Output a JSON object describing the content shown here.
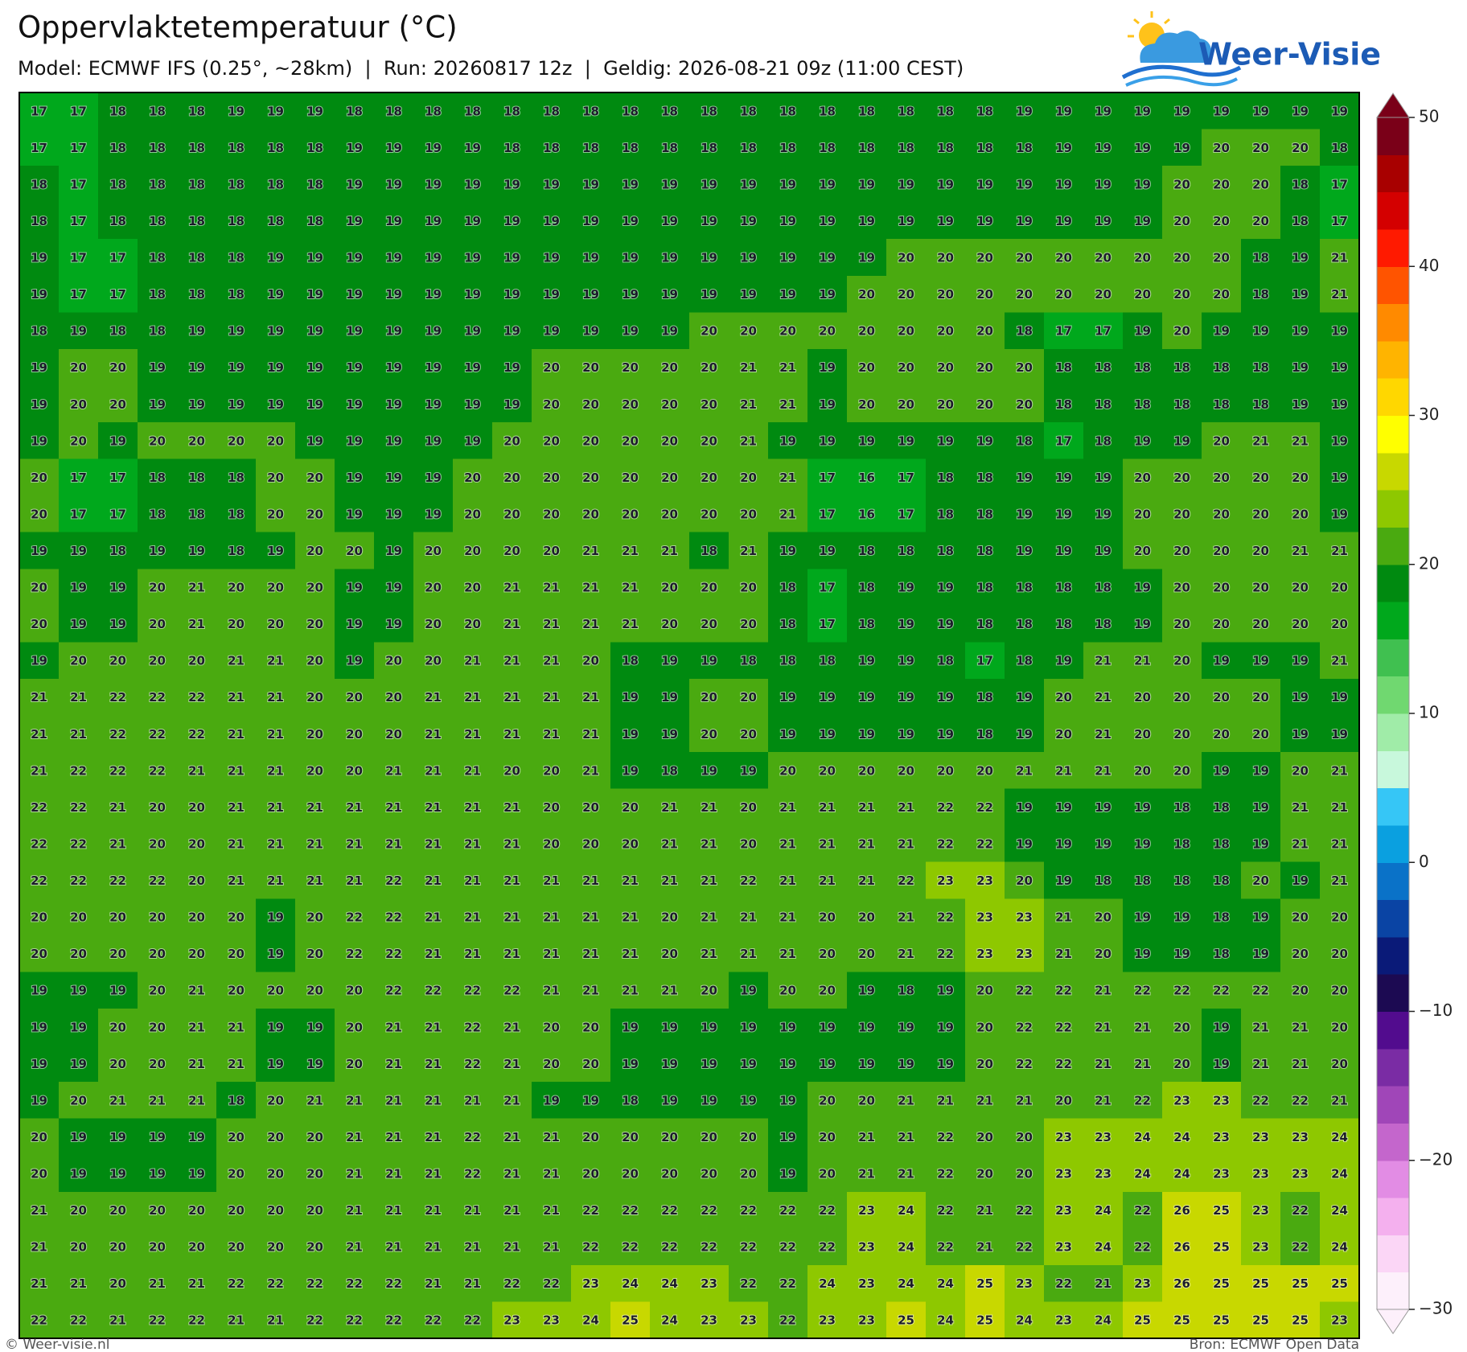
{
  "header": {
    "title": "Oppervlaktetemperatuur (°C)",
    "subtitle": "Model: ECMWF IFS (0.25°, ~28km)  |  Run: 20260817 12z  |  Geldig: 2026-08-21 09z (11:00 CEST)"
  },
  "logo": {
    "text": "Weer-Visie"
  },
  "grid": {
    "values": [
      [
        17,
        17,
        18,
        18,
        18,
        19,
        19,
        19,
        18,
        18,
        18,
        18,
        18,
        18,
        18,
        18,
        18,
        18,
        18,
        18,
        18,
        18,
        18,
        18,
        18,
        19,
        19,
        19,
        19,
        19,
        19,
        19,
        19,
        19
      ],
      [
        17,
        17,
        18,
        18,
        18,
        18,
        18,
        18,
        19,
        19,
        19,
        19,
        18,
        18,
        18,
        18,
        18,
        18,
        18,
        18,
        18,
        18,
        18,
        18,
        18,
        18,
        19,
        19,
        19,
        19,
        20,
        20,
        20,
        18
      ],
      [
        18,
        17,
        18,
        18,
        18,
        18,
        18,
        18,
        19,
        19,
        19,
        19,
        19,
        19,
        19,
        19,
        19,
        19,
        19,
        19,
        19,
        19,
        19,
        19,
        19,
        19,
        19,
        19,
        19,
        20,
        20,
        20,
        18,
        17
      ],
      [
        18,
        17,
        18,
        18,
        18,
        18,
        18,
        18,
        19,
        19,
        19,
        19,
        19,
        19,
        19,
        19,
        19,
        19,
        19,
        19,
        19,
        19,
        19,
        19,
        19,
        19,
        19,
        19,
        19,
        20,
        20,
        20,
        18,
        17
      ],
      [
        19,
        17,
        17,
        18,
        18,
        18,
        19,
        19,
        19,
        19,
        19,
        19,
        19,
        19,
        19,
        19,
        19,
        19,
        19,
        19,
        19,
        19,
        20,
        20,
        20,
        20,
        20,
        20,
        20,
        20,
        20,
        18,
        19,
        21
      ],
      [
        19,
        17,
        17,
        18,
        18,
        18,
        19,
        19,
        19,
        19,
        19,
        19,
        19,
        19,
        19,
        19,
        19,
        19,
        19,
        19,
        19,
        20,
        20,
        20,
        20,
        20,
        20,
        20,
        20,
        20,
        20,
        18,
        19,
        21
      ],
      [
        18,
        19,
        18,
        18,
        19,
        19,
        19,
        19,
        19,
        19,
        19,
        19,
        19,
        19,
        19,
        19,
        19,
        20,
        20,
        20,
        20,
        20,
        20,
        20,
        20,
        18,
        17,
        17,
        19,
        20,
        19,
        19,
        19,
        19
      ],
      [
        19,
        20,
        20,
        19,
        19,
        19,
        19,
        19,
        19,
        19,
        19,
        19,
        19,
        20,
        20,
        20,
        20,
        20,
        21,
        21,
        19,
        20,
        20,
        20,
        20,
        20,
        18,
        18,
        18,
        18,
        18,
        18,
        19,
        19
      ],
      [
        19,
        20,
        20,
        19,
        19,
        19,
        19,
        19,
        19,
        19,
        19,
        19,
        19,
        20,
        20,
        20,
        20,
        20,
        21,
        21,
        19,
        20,
        20,
        20,
        20,
        20,
        18,
        18,
        18,
        18,
        18,
        18,
        19,
        19
      ],
      [
        19,
        20,
        19,
        20,
        20,
        20,
        20,
        19,
        19,
        19,
        19,
        19,
        20,
        20,
        20,
        20,
        20,
        20,
        21,
        19,
        19,
        19,
        19,
        19,
        19,
        18,
        17,
        18,
        19,
        19,
        20,
        21,
        21,
        19
      ],
      [
        20,
        17,
        17,
        18,
        18,
        18,
        20,
        20,
        19,
        19,
        19,
        20,
        20,
        20,
        20,
        20,
        20,
        20,
        20,
        21,
        17,
        16,
        17,
        18,
        18,
        19,
        19,
        19,
        20,
        20,
        20,
        20,
        20,
        19
      ],
      [
        20,
        17,
        17,
        18,
        18,
        18,
        20,
        20,
        19,
        19,
        19,
        20,
        20,
        20,
        20,
        20,
        20,
        20,
        20,
        21,
        17,
        16,
        17,
        18,
        18,
        19,
        19,
        19,
        20,
        20,
        20,
        20,
        20,
        19
      ],
      [
        19,
        19,
        18,
        19,
        19,
        18,
        19,
        20,
        20,
        19,
        20,
        20,
        20,
        20,
        21,
        21,
        21,
        18,
        21,
        19,
        19,
        18,
        18,
        18,
        18,
        19,
        19,
        19,
        20,
        20,
        20,
        20,
        21,
        21
      ],
      [
        20,
        19,
        19,
        20,
        21,
        20,
        20,
        20,
        19,
        19,
        20,
        20,
        21,
        21,
        21,
        21,
        20,
        20,
        20,
        18,
        17,
        18,
        19,
        19,
        18,
        18,
        18,
        18,
        19,
        20,
        20,
        20,
        20,
        20
      ],
      [
        20,
        19,
        19,
        20,
        21,
        20,
        20,
        20,
        19,
        19,
        20,
        20,
        21,
        21,
        21,
        21,
        20,
        20,
        20,
        18,
        17,
        18,
        19,
        19,
        18,
        18,
        18,
        18,
        19,
        20,
        20,
        20,
        20,
        20
      ],
      [
        19,
        20,
        20,
        20,
        20,
        21,
        21,
        20,
        19,
        20,
        20,
        21,
        21,
        21,
        20,
        18,
        19,
        19,
        18,
        18,
        18,
        19,
        19,
        18,
        17,
        18,
        19,
        21,
        21,
        20,
        19,
        19,
        19,
        21
      ],
      [
        21,
        21,
        22,
        22,
        22,
        21,
        21,
        20,
        20,
        20,
        21,
        21,
        21,
        21,
        21,
        19,
        19,
        20,
        20,
        19,
        19,
        19,
        19,
        19,
        18,
        19,
        20,
        21,
        20,
        20,
        20,
        20,
        19,
        19
      ],
      [
        21,
        21,
        22,
        22,
        22,
        21,
        21,
        20,
        20,
        20,
        21,
        21,
        21,
        21,
        21,
        19,
        19,
        20,
        20,
        19,
        19,
        19,
        19,
        19,
        18,
        19,
        20,
        21,
        20,
        20,
        20,
        20,
        19,
        19
      ],
      [
        21,
        22,
        22,
        22,
        21,
        21,
        21,
        20,
        20,
        21,
        21,
        21,
        20,
        20,
        21,
        19,
        18,
        19,
        19,
        20,
        20,
        20,
        20,
        20,
        20,
        21,
        21,
        21,
        20,
        20,
        19,
        19,
        20,
        21
      ],
      [
        22,
        22,
        21,
        20,
        20,
        21,
        21,
        21,
        21,
        21,
        21,
        21,
        21,
        20,
        20,
        20,
        21,
        21,
        20,
        21,
        21,
        21,
        21,
        22,
        22,
        19,
        19,
        19,
        19,
        18,
        18,
        19,
        21,
        21
      ],
      [
        22,
        22,
        21,
        20,
        20,
        21,
        21,
        21,
        21,
        21,
        21,
        21,
        21,
        20,
        20,
        20,
        21,
        21,
        20,
        21,
        21,
        21,
        21,
        22,
        22,
        19,
        19,
        19,
        19,
        18,
        18,
        19,
        21,
        21
      ],
      [
        22,
        22,
        22,
        22,
        20,
        21,
        21,
        21,
        21,
        22,
        21,
        21,
        21,
        21,
        21,
        21,
        21,
        21,
        22,
        21,
        21,
        21,
        22,
        23,
        23,
        20,
        19,
        18,
        18,
        18,
        18,
        20,
        19,
        21
      ],
      [
        20,
        20,
        20,
        20,
        20,
        20,
        19,
        20,
        22,
        22,
        21,
        21,
        21,
        21,
        21,
        21,
        20,
        21,
        21,
        21,
        20,
        20,
        21,
        22,
        23,
        23,
        21,
        20,
        19,
        19,
        18,
        19,
        20,
        20
      ],
      [
        20,
        20,
        20,
        20,
        20,
        20,
        19,
        20,
        22,
        22,
        21,
        21,
        21,
        21,
        21,
        21,
        20,
        21,
        21,
        21,
        20,
        20,
        21,
        22,
        23,
        23,
        21,
        20,
        19,
        19,
        18,
        19,
        20,
        20
      ],
      [
        19,
        19,
        19,
        20,
        21,
        20,
        20,
        20,
        20,
        22,
        22,
        22,
        22,
        21,
        21,
        21,
        21,
        20,
        19,
        20,
        20,
        19,
        18,
        19,
        20,
        22,
        22,
        21,
        22,
        22,
        22,
        22,
        20,
        20
      ],
      [
        19,
        19,
        20,
        20,
        21,
        21,
        19,
        19,
        20,
        21,
        21,
        22,
        21,
        20,
        20,
        19,
        19,
        19,
        19,
        19,
        19,
        19,
        19,
        19,
        20,
        22,
        22,
        21,
        21,
        20,
        19,
        21,
        21,
        20
      ],
      [
        19,
        19,
        20,
        20,
        21,
        21,
        19,
        19,
        20,
        21,
        21,
        22,
        21,
        20,
        20,
        19,
        19,
        19,
        19,
        19,
        19,
        19,
        19,
        19,
        20,
        22,
        22,
        21,
        21,
        20,
        19,
        21,
        21,
        20
      ],
      [
        19,
        20,
        21,
        21,
        21,
        18,
        20,
        21,
        21,
        21,
        21,
        21,
        21,
        19,
        19,
        18,
        19,
        19,
        19,
        19,
        20,
        20,
        21,
        21,
        21,
        21,
        20,
        21,
        22,
        23,
        23,
        22,
        22,
        21
      ],
      [
        20,
        19,
        19,
        19,
        19,
        20,
        20,
        20,
        21,
        21,
        21,
        22,
        21,
        21,
        20,
        20,
        20,
        20,
        20,
        19,
        20,
        21,
        21,
        22,
        20,
        20,
        23,
        23,
        24,
        24,
        23,
        23,
        23,
        24
      ],
      [
        20,
        19,
        19,
        19,
        19,
        20,
        20,
        20,
        21,
        21,
        21,
        22,
        21,
        21,
        20,
        20,
        20,
        20,
        20,
        19,
        20,
        21,
        21,
        22,
        20,
        20,
        23,
        23,
        24,
        24,
        23,
        23,
        23,
        24
      ],
      [
        21,
        20,
        20,
        20,
        20,
        20,
        20,
        20,
        21,
        21,
        21,
        21,
        21,
        21,
        22,
        22,
        22,
        22,
        22,
        22,
        22,
        23,
        24,
        22,
        21,
        22,
        23,
        24,
        22,
        26,
        25,
        23,
        22,
        24
      ],
      [
        21,
        20,
        20,
        20,
        20,
        20,
        20,
        20,
        21,
        21,
        21,
        21,
        21,
        21,
        22,
        22,
        22,
        22,
        22,
        22,
        22,
        23,
        24,
        22,
        21,
        22,
        23,
        24,
        22,
        26,
        25,
        23,
        22,
        24
      ],
      [
        21,
        21,
        20,
        21,
        21,
        22,
        22,
        22,
        22,
        22,
        21,
        21,
        22,
        22,
        23,
        24,
        24,
        23,
        22,
        22,
        24,
        23,
        24,
        24,
        25,
        23,
        22,
        21,
        23,
        26,
        25,
        25,
        25,
        25
      ],
      [
        22,
        22,
        21,
        22,
        22,
        21,
        21,
        22,
        22,
        22,
        22,
        22,
        23,
        23,
        24,
        25,
        24,
        23,
        23,
        22,
        23,
        23,
        25,
        24,
        25,
        24,
        23,
        24,
        25,
        25,
        25,
        25,
        25,
        23
      ]
    ]
  },
  "colorbar": {
    "lim": [
      -30,
      50
    ],
    "ticks": [
      {
        "value": -30,
        "label": "−30"
      },
      {
        "value": -20,
        "label": "−20"
      },
      {
        "value": -10,
        "label": "−10"
      },
      0,
      10,
      20,
      30,
      40,
      50
    ],
    "colors": [
      "#fdf0fb",
      "#fbd6f6",
      "#f4b0ee",
      "#e28ce4",
      "#c466cc",
      "#a046b8",
      "#7a2ca4",
      "#520c8e",
      "#1c0a52",
      "#0a1a78",
      "#0a44a4",
      "#0a72c8",
      "#0aa0e0",
      "#36c6f6",
      "#c8f8dc",
      "#a0eca8",
      "#70d870",
      "#40c050",
      "#00a81c",
      "#008a10",
      "#4aaa10",
      "#8ec800",
      "#c8d800",
      "#ffff00",
      "#ffd700",
      "#ffb400",
      "#ff8a00",
      "#ff5400",
      "#ff1a00",
      "#d40000",
      "#a80000",
      "#7a0018"
    ]
  },
  "footer": {
    "left": "© Weer-visie.nl",
    "right": "Bron: ECMWF Open Data"
  }
}
